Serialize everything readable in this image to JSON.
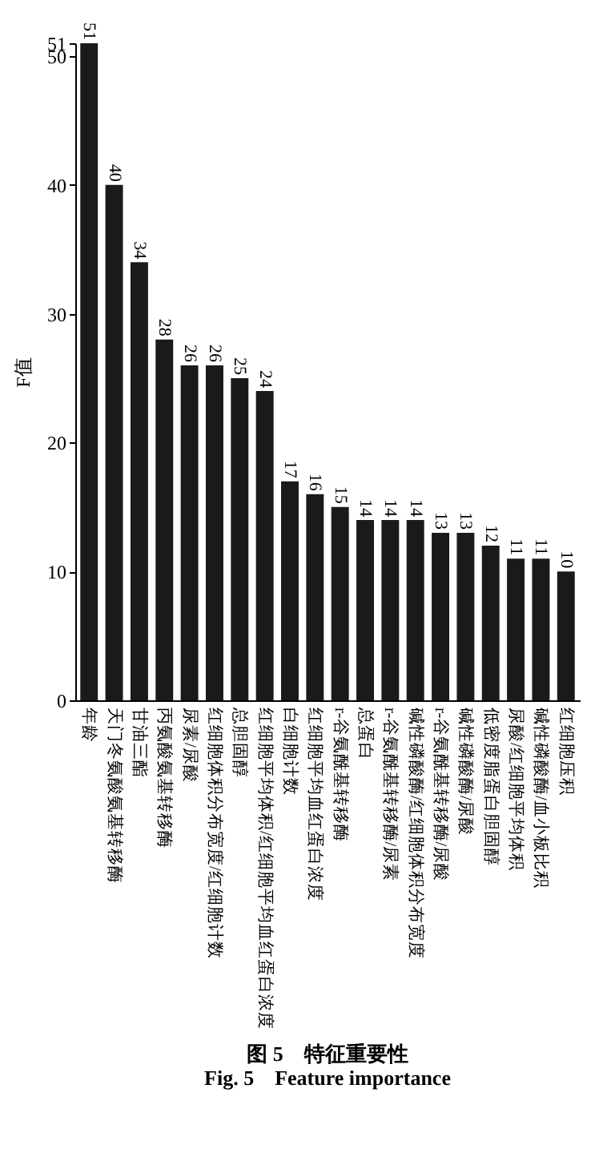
{
  "chart_data": {
    "type": "bar",
    "title": "图 5　特征重要性",
    "subtitle": "Fig. 5　Feature importance",
    "ylabel": "F值",
    "categories": [
      "年龄",
      "天门冬氨酸氨基转移酶",
      "甘油三酯",
      "丙氨酸氨基转移酶",
      "尿素/尿酸",
      "红细胞体积分布宽度/红细胞计数",
      "总胆固醇",
      "红细胞平均体积/红细胞平均血红蛋白浓度",
      "白细胞计数",
      "红细胞平均血红蛋白浓度",
      "r-谷氨酰基转移酶",
      "总蛋白",
      "r-谷氨酰基转移酶/尿素",
      "碱性磷酸酶/红细胞体积分布宽度",
      "r-谷氨酰基转移酶/尿酸",
      "碱性磷酸酶/尿酸",
      "低密度脂蛋白胆固醇",
      "尿酸/红细胞平均体积",
      "碱性磷酸酶/血小板比积",
      "红细胞压积"
    ],
    "values": [
      51,
      40,
      34,
      28,
      26,
      26,
      25,
      24,
      17,
      16,
      15,
      14,
      14,
      14,
      13,
      13,
      12,
      11,
      11,
      10
    ],
    "color": "#1a1a1a",
    "ylim": [
      0,
      51
    ],
    "yticks": [
      0,
      10,
      20,
      30,
      40,
      50,
      51
    ],
    "data_labels": true,
    "grid": false
  }
}
